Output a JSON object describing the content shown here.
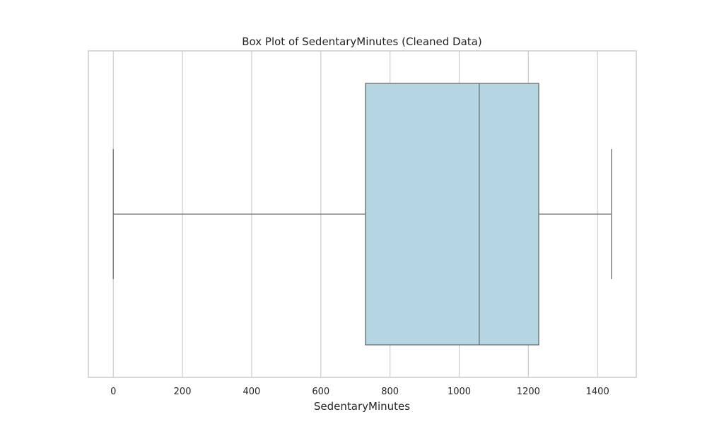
{
  "chart_data": {
    "type": "box",
    "title": "Box Plot of SedentaryMinutes (Cleaned Data)",
    "xlabel": "SedentaryMinutes",
    "ylabel": "",
    "orientation": "horizontal",
    "xlim": [
      -72,
      1512
    ],
    "xticks": [
      0,
      200,
      400,
      600,
      800,
      1000,
      1200,
      1400
    ],
    "grid": true,
    "box": {
      "whisker_low": 0,
      "q1": 729,
      "median": 1058,
      "q3": 1230,
      "whisker_high": 1440
    },
    "colors": {
      "box_fill": "#b4d5e1",
      "box_edge": "#6e6e6e",
      "grid": "#cccccc",
      "frame": "#cccccc"
    }
  }
}
